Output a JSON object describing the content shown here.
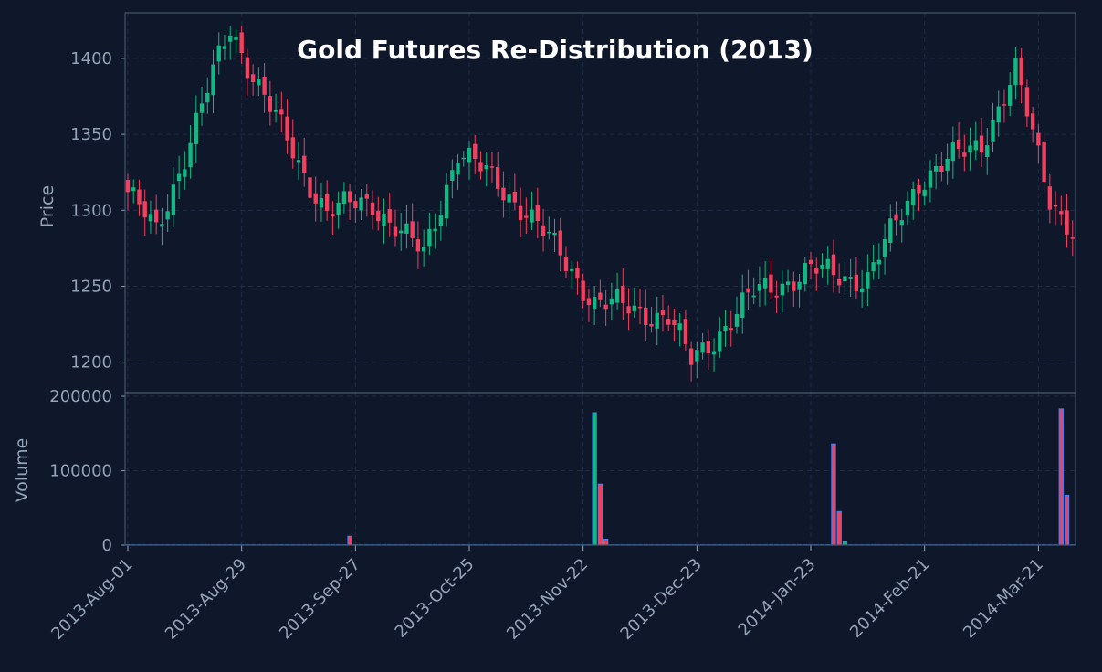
{
  "chart_data": {
    "type": "candlestick",
    "title": "Gold Futures Re-Distribution (2013)",
    "price_axis": {
      "label": "Price",
      "ticks": [
        1200,
        1250,
        1300,
        1350,
        1400
      ],
      "ylim": [
        1180,
        1430
      ]
    },
    "volume_axis": {
      "label": "Volume",
      "ticks": [
        0,
        100000,
        200000
      ],
      "tick_labels": [
        "0",
        "100000",
        "200000"
      ],
      "ylim": [
        0,
        200000
      ]
    },
    "x_ticks": [
      {
        "label": "2013-Aug-01",
        "index": 0
      },
      {
        "label": "2013-Aug-29",
        "index": 20
      },
      {
        "label": "2013-Sep-27",
        "index": 40
      },
      {
        "label": "2013-Oct-25",
        "index": 60
      },
      {
        "label": "2013-Nov-22",
        "index": 80
      },
      {
        "label": "2013-Dec-23",
        "index": 100
      },
      {
        "label": "2014-Jan-23",
        "index": 120
      },
      {
        "label": "2014-Feb-21",
        "index": 140
      },
      {
        "label": "2014-Mar-21",
        "index": 160
      }
    ],
    "n_bars": 167,
    "grid": true,
    "colors": {
      "up": "#10b981",
      "down": "#f43f5e",
      "volume_edge": "#3b82f6",
      "grid": "#1e2a44",
      "spine": "#475569"
    },
    "key_price_points": [
      {
        "index": 0,
        "close": 1312
      },
      {
        "index": 5,
        "close": 1285
      },
      {
        "index": 18,
        "close": 1420
      },
      {
        "index": 30,
        "close": 1330
      },
      {
        "index": 35,
        "close": 1300
      },
      {
        "index": 43,
        "close": 1305
      },
      {
        "index": 52,
        "close": 1270
      },
      {
        "index": 58,
        "close": 1340
      },
      {
        "index": 70,
        "close": 1300
      },
      {
        "index": 82,
        "close": 1240
      },
      {
        "index": 95,
        "close": 1230
      },
      {
        "index": 99,
        "close": 1200
      },
      {
        "index": 110,
        "close": 1245
      },
      {
        "index": 120,
        "close": 1260
      },
      {
        "index": 130,
        "close": 1255
      },
      {
        "index": 139,
        "close": 1320
      },
      {
        "index": 150,
        "close": 1345
      },
      {
        "index": 156,
        "close": 1390
      },
      {
        "index": 162,
        "close": 1310
      },
      {
        "index": 166,
        "close": 1285
      }
    ],
    "volume_spikes": [
      {
        "index": 39,
        "value": 12000
      },
      {
        "index": 82,
        "value": 178000
      },
      {
        "index": 83,
        "value": 82000
      },
      {
        "index": 84,
        "value": 8000
      },
      {
        "index": 124,
        "value": 136000
      },
      {
        "index": 125,
        "value": 45000
      },
      {
        "index": 126,
        "value": 5000
      },
      {
        "index": 164,
        "value": 183000
      },
      {
        "index": 165,
        "value": 67000
      }
    ]
  }
}
